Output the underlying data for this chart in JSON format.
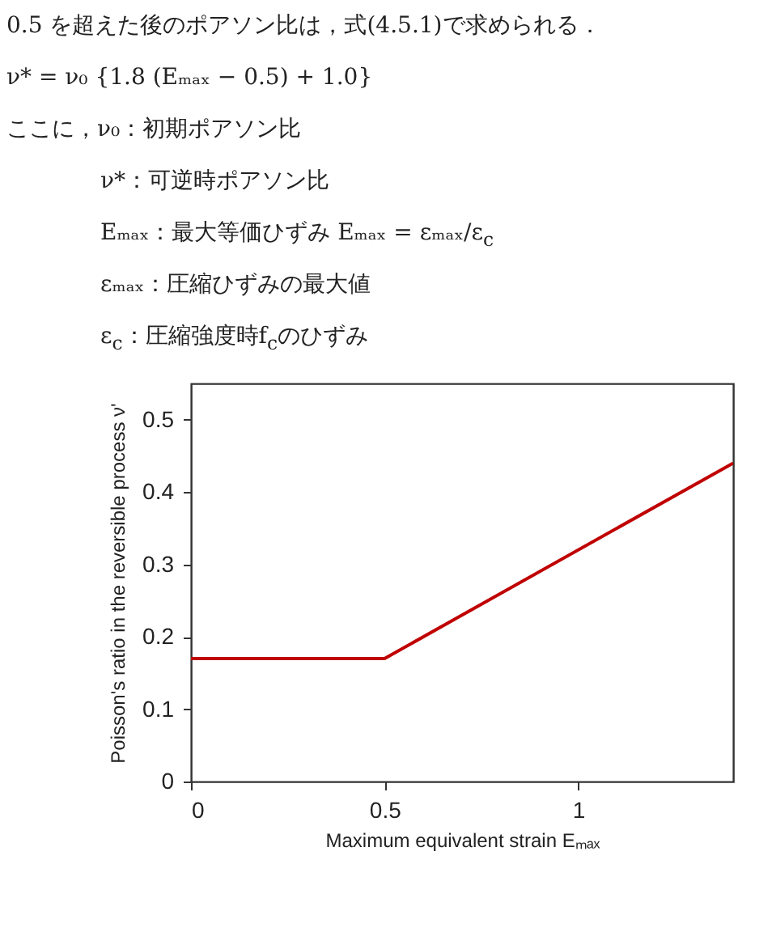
{
  "chart_data": {
    "type": "line",
    "annotations": [
      "0.5 を超えた後のポアソン比は，式(4.5.1)で求められる．",
      "ν* = ν₀ {1.8 (Eₘₐₓ − 0.5) + 1.0}",
      "ここに，ν₀：初期ポアソン比",
      "ν*：可逆時ポアソン比",
      "Eₘₐₓ：最大等価ひずみ Eₘₐₓ = εₘₐₓ/ε$_{c}$",
      "εₘₐₓ：圧縮ひずみの最大値",
      "ε$_{c}$：圧縮強度時f$_{c}$のひずみ"
    ],
    "xlabel": "Maximum equivalent strain Eₘₐₓ",
    "ylabel": "Poisson's ratio in the reversible process ν'",
    "x": [
      0,
      0.5,
      1.4
    ],
    "series": [
      {
        "color": "#c00000",
        "values": [
          0.17,
          0.17,
          0.44
        ]
      }
    ],
    "xlim": [
      0,
      1.4
    ],
    "xticks": [
      0,
      0.5,
      1
    ],
    "ylim": [
      0,
      0.55
    ],
    "yticks": [
      0,
      0.1,
      0.2,
      0.3,
      0.4,
      0.5
    ],
    "grid": false,
    "marker": "none"
  }
}
